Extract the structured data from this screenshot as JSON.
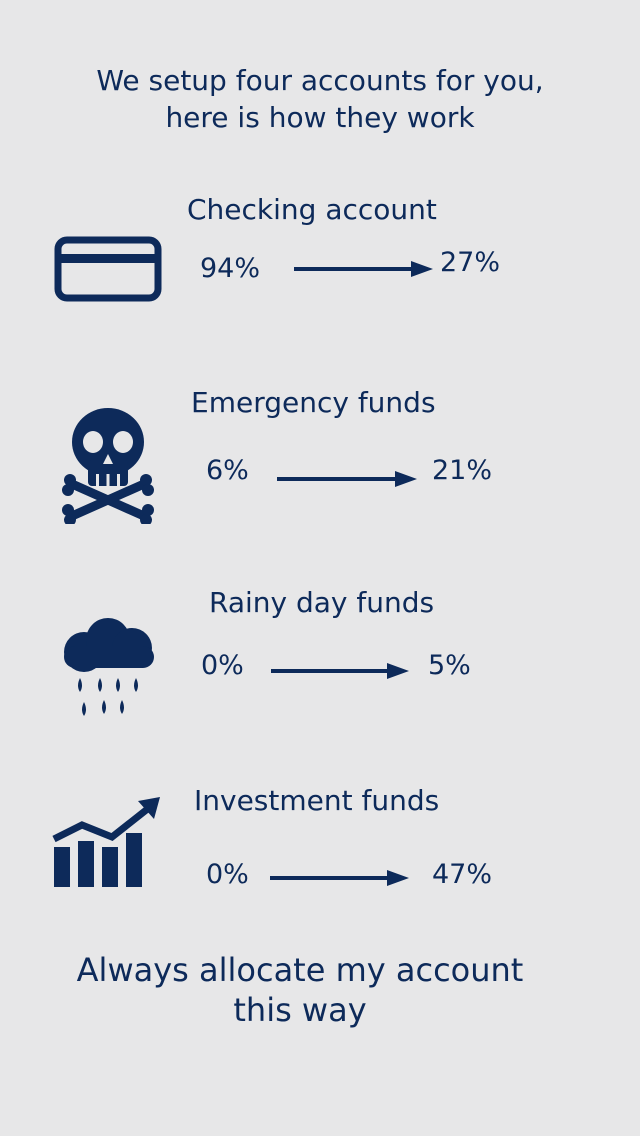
{
  "intro": {
    "line1": "We setup four accounts for you,",
    "line2": "here is how they work"
  },
  "accounts": [
    {
      "title": "Checking account",
      "icon": "credit-card-icon",
      "from": "94%",
      "to": "27%"
    },
    {
      "title": "Emergency funds",
      "icon": "skull-crossbones-icon",
      "from": "6%",
      "to": "21%"
    },
    {
      "title": "Rainy day funds",
      "icon": "rain-cloud-icon",
      "from": "0%",
      "to": "5%"
    },
    {
      "title": "Investment funds",
      "icon": "growth-chart-icon",
      "from": "0%",
      "to": "47%"
    }
  ],
  "footer": {
    "line1": "Always allocate my account",
    "line2": "this way"
  },
  "colors": {
    "background": "#e7e7e8",
    "primary": "#0d2a5a"
  }
}
